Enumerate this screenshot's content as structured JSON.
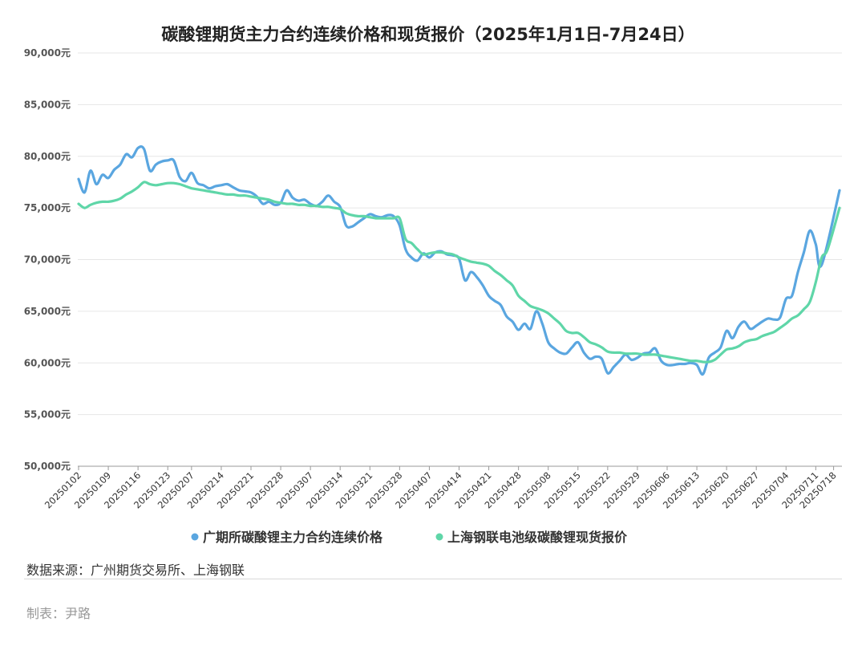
{
  "chart_data": {
    "type": "line",
    "title": "碳酸锂期货主力合约连续价格和现货报价（2025年1月1日-7月24日）",
    "ylim": [
      50000,
      90000
    ],
    "y_ticks": [
      50000,
      55000,
      60000,
      65000,
      70000,
      75000,
      80000,
      85000,
      90000
    ],
    "y_tick_labels": [
      "50,000元",
      "55,000元",
      "60,000元",
      "65,000元",
      "70,000元",
      "75,000元",
      "80,000元",
      "85,000元",
      "90,000元"
    ],
    "x_tick_labels": [
      "20250102",
      "20250109",
      "20250116",
      "20250123",
      "20250207",
      "20250214",
      "20250221",
      "20250228",
      "20250307",
      "20250314",
      "20250321",
      "20250328",
      "20250407",
      "20250414",
      "20250421",
      "20250428",
      "20250508",
      "20250515",
      "20250522",
      "20250529",
      "20250606",
      "20250613",
      "20250620",
      "20250627",
      "20250704",
      "20250711",
      "20250718"
    ],
    "grid": true,
    "legend_position": "bottom",
    "series": [
      {
        "name": "广期所碳酸锂主力合约连续价格",
        "color": "#5aa6e0",
        "points": [
          [
            "20250102",
            77800
          ],
          [
            "20250103",
            76500
          ],
          [
            "20250106",
            78600
          ],
          [
            "20250107",
            77300
          ],
          [
            "20250108",
            78200
          ],
          [
            "20250109",
            77900
          ],
          [
            "20250110",
            78700
          ],
          [
            "20250113",
            79200
          ],
          [
            "20250114",
            80200
          ],
          [
            "20250115",
            79900
          ],
          [
            "20250116",
            80800
          ],
          [
            "20250117",
            80700
          ],
          [
            "20250120",
            78600
          ],
          [
            "20250121",
            79200
          ],
          [
            "20250122",
            79500
          ],
          [
            "20250123",
            79600
          ],
          [
            "20250124",
            79600
          ],
          [
            "20250205",
            78000
          ],
          [
            "20250206",
            77600
          ],
          [
            "20250207",
            78400
          ],
          [
            "20250210",
            77400
          ],
          [
            "20250211",
            77200
          ],
          [
            "20250212",
            76900
          ],
          [
            "20250213",
            77100
          ],
          [
            "20250214",
            77200
          ],
          [
            "20250217",
            77300
          ],
          [
            "20250218",
            77000
          ],
          [
            "20250219",
            76700
          ],
          [
            "20250220",
            76600
          ],
          [
            "20250221",
            76500
          ],
          [
            "20250224",
            76100
          ],
          [
            "20250225",
            75400
          ],
          [
            "20250226",
            75600
          ],
          [
            "20250227",
            75300
          ],
          [
            "20250228",
            75500
          ],
          [
            "20250303",
            76700
          ],
          [
            "20250304",
            76000
          ],
          [
            "20250305",
            75700
          ],
          [
            "20250306",
            75800
          ],
          [
            "20250307",
            75400
          ],
          [
            "20250310",
            75200
          ],
          [
            "20250311",
            75600
          ],
          [
            "20250312",
            76200
          ],
          [
            "20250313",
            75600
          ],
          [
            "20250314",
            75100
          ],
          [
            "20250317",
            73300
          ],
          [
            "20250318",
            73200
          ],
          [
            "20250319",
            73600
          ],
          [
            "20250320",
            74000
          ],
          [
            "20250321",
            74400
          ],
          [
            "20250324",
            74200
          ],
          [
            "20250325",
            74100
          ],
          [
            "20250326",
            74300
          ],
          [
            "20250327",
            74200
          ],
          [
            "20250328",
            73300
          ],
          [
            "20250331",
            71000
          ],
          [
            "20250401",
            70200
          ],
          [
            "20250402",
            69900
          ],
          [
            "20250403",
            70600
          ],
          [
            "20250407",
            70200
          ],
          [
            "20250408",
            70700
          ],
          [
            "20250409",
            70800
          ],
          [
            "20250410",
            70500
          ],
          [
            "20250411",
            70400
          ],
          [
            "20250414",
            70100
          ],
          [
            "20250415",
            68000
          ],
          [
            "20250416",
            68800
          ],
          [
            "20250417",
            68300
          ],
          [
            "20250418",
            67500
          ],
          [
            "20250421",
            66500
          ],
          [
            "20250422",
            66000
          ],
          [
            "20250423",
            65600
          ],
          [
            "20250424",
            64500
          ],
          [
            "20250425",
            64000
          ],
          [
            "20250428",
            63200
          ],
          [
            "20250429",
            63800
          ],
          [
            "20250430",
            63300
          ],
          [
            "20250506",
            65000
          ],
          [
            "20250507",
            63800
          ],
          [
            "20250508",
            62000
          ],
          [
            "20250509",
            61400
          ],
          [
            "20250512",
            61000
          ],
          [
            "20250513",
            60900
          ],
          [
            "20250514",
            61500
          ],
          [
            "20250515",
            62000
          ],
          [
            "20250516",
            61000
          ],
          [
            "20250519",
            60400
          ],
          [
            "20250520",
            60600
          ],
          [
            "20250521",
            60400
          ],
          [
            "20250522",
            59000
          ],
          [
            "20250523",
            59600
          ],
          [
            "20250526",
            60200
          ],
          [
            "20250527",
            60800
          ],
          [
            "20250528",
            60300
          ],
          [
            "20250529",
            60500
          ],
          [
            "20250530",
            60900
          ],
          [
            "20250603",
            61000
          ],
          [
            "20250604",
            61400
          ],
          [
            "20250605",
            60200
          ],
          [
            "20250606",
            59800
          ],
          [
            "20250609",
            59800
          ],
          [
            "20250610",
            59900
          ],
          [
            "20250611",
            59900
          ],
          [
            "20250612",
            60000
          ],
          [
            "20250613",
            59800
          ],
          [
            "20250616",
            58900
          ],
          [
            "20250617",
            60500
          ],
          [
            "20250618",
            61000
          ],
          [
            "20250619",
            61500
          ],
          [
            "20250620",
            63100
          ],
          [
            "20250623",
            62400
          ],
          [
            "20250624",
            63500
          ],
          [
            "20250625",
            64000
          ],
          [
            "20250626",
            63300
          ],
          [
            "20250627",
            63600
          ],
          [
            "20250630",
            64000
          ],
          [
            "20250701",
            64300
          ],
          [
            "20250702",
            64200
          ],
          [
            "20250703",
            64400
          ],
          [
            "20250704",
            66200
          ],
          [
            "20250707",
            66500
          ],
          [
            "20250708",
            68800
          ],
          [
            "20250709",
            70700
          ],
          [
            "20250710",
            72800
          ],
          [
            "20250711",
            71500
          ],
          [
            "20250714",
            69500
          ],
          [
            "20250724",
            76700
          ]
        ]
      },
      {
        "name": "上海钢联电池级碳酸锂现货报价",
        "color": "#5fd6a8",
        "points": [
          [
            "20250102",
            75400
          ],
          [
            "20250103",
            75000
          ],
          [
            "20250106",
            75300
          ],
          [
            "20250107",
            75500
          ],
          [
            "20250108",
            75600
          ],
          [
            "20250109",
            75600
          ],
          [
            "20250110",
            75700
          ],
          [
            "20250113",
            75900
          ],
          [
            "20250114",
            76300
          ],
          [
            "20250115",
            76600
          ],
          [
            "20250116",
            77000
          ],
          [
            "20250117",
            77500
          ],
          [
            "20250120",
            77300
          ],
          [
            "20250121",
            77200
          ],
          [
            "20250122",
            77300
          ],
          [
            "20250123",
            77400
          ],
          [
            "20250124",
            77400
          ],
          [
            "20250205",
            77300
          ],
          [
            "20250206",
            77100
          ],
          [
            "20250207",
            76900
          ],
          [
            "20250210",
            76800
          ],
          [
            "20250211",
            76700
          ],
          [
            "20250212",
            76600
          ],
          [
            "20250213",
            76500
          ],
          [
            "20250214",
            76400
          ],
          [
            "20250217",
            76300
          ],
          [
            "20250218",
            76300
          ],
          [
            "20250219",
            76200
          ],
          [
            "20250220",
            76200
          ],
          [
            "20250221",
            76100
          ],
          [
            "20250224",
            76000
          ],
          [
            "20250225",
            75900
          ],
          [
            "20250226",
            75800
          ],
          [
            "20250227",
            75600
          ],
          [
            "20250228",
            75500
          ],
          [
            "20250303",
            75400
          ],
          [
            "20250304",
            75400
          ],
          [
            "20250305",
            75300
          ],
          [
            "20250306",
            75300
          ],
          [
            "20250307",
            75200
          ],
          [
            "20250310",
            75200
          ],
          [
            "20250311",
            75100
          ],
          [
            "20250312",
            75100
          ],
          [
            "20250313",
            75000
          ],
          [
            "20250314",
            74900
          ],
          [
            "20250317",
            74500
          ],
          [
            "20250318",
            74300
          ],
          [
            "20250319",
            74200
          ],
          [
            "20250320",
            74200
          ],
          [
            "20250321",
            74100
          ],
          [
            "20250324",
            74000
          ],
          [
            "20250325",
            74000
          ],
          [
            "20250326",
            74000
          ],
          [
            "20250327",
            74000
          ],
          [
            "20250328",
            74000
          ],
          [
            "20250331",
            72000
          ],
          [
            "20250401",
            71600
          ],
          [
            "20250402",
            71000
          ],
          [
            "20250403",
            70500
          ],
          [
            "20250407",
            70600
          ],
          [
            "20250408",
            70700
          ],
          [
            "20250409",
            70700
          ],
          [
            "20250410",
            70600
          ],
          [
            "20250411",
            70500
          ],
          [
            "20250414",
            70200
          ],
          [
            "20250415",
            70000
          ],
          [
            "20250416",
            69800
          ],
          [
            "20250417",
            69700
          ],
          [
            "20250418",
            69600
          ],
          [
            "20250421",
            69400
          ],
          [
            "20250422",
            68900
          ],
          [
            "20250423",
            68500
          ],
          [
            "20250424",
            68000
          ],
          [
            "20250425",
            67500
          ],
          [
            "20250428",
            66500
          ],
          [
            "20250429",
            66000
          ],
          [
            "20250430",
            65500
          ],
          [
            "20250506",
            65300
          ],
          [
            "20250507",
            65100
          ],
          [
            "20250508",
            64800
          ],
          [
            "20250509",
            64300
          ],
          [
            "20250512",
            63800
          ],
          [
            "20250513",
            63100
          ],
          [
            "20250514",
            62900
          ],
          [
            "20250515",
            62900
          ],
          [
            "20250516",
            62500
          ],
          [
            "20250519",
            62000
          ],
          [
            "20250520",
            61800
          ],
          [
            "20250521",
            61500
          ],
          [
            "20250522",
            61100
          ],
          [
            "20250523",
            61000
          ],
          [
            "20250526",
            61000
          ],
          [
            "20250527",
            60900
          ],
          [
            "20250528",
            60900
          ],
          [
            "20250529",
            60900
          ],
          [
            "20250530",
            60800
          ],
          [
            "20250603",
            60800
          ],
          [
            "20250604",
            60800
          ],
          [
            "20250605",
            60700
          ],
          [
            "20250606",
            60600
          ],
          [
            "20250609",
            60500
          ],
          [
            "20250610",
            60400
          ],
          [
            "20250611",
            60300
          ],
          [
            "20250612",
            60200
          ],
          [
            "20250613",
            60200
          ],
          [
            "20250616",
            60100
          ],
          [
            "20250617",
            60100
          ],
          [
            "20250618",
            60300
          ],
          [
            "20250619",
            60800
          ],
          [
            "20250620",
            61300
          ],
          [
            "20250623",
            61400
          ],
          [
            "20250624",
            61600
          ],
          [
            "20250625",
            62000
          ],
          [
            "20250626",
            62200
          ],
          [
            "20250627",
            62300
          ],
          [
            "20250630",
            62600
          ],
          [
            "20250701",
            62800
          ],
          [
            "20250702",
            63000
          ],
          [
            "20250703",
            63400
          ],
          [
            "20250704",
            63800
          ],
          [
            "20250707",
            64300
          ],
          [
            "20250708",
            64600
          ],
          [
            "20250709",
            65200
          ],
          [
            "20250710",
            65900
          ],
          [
            "20250711",
            67800
          ],
          [
            "20250714",
            70200
          ],
          [
            "20250715",
            71000
          ],
          [
            "20250724",
            75000
          ]
        ]
      }
    ]
  },
  "footer": {
    "source": "数据来源：广州期货交易所、上海钢联",
    "author": "制表：尹路"
  }
}
